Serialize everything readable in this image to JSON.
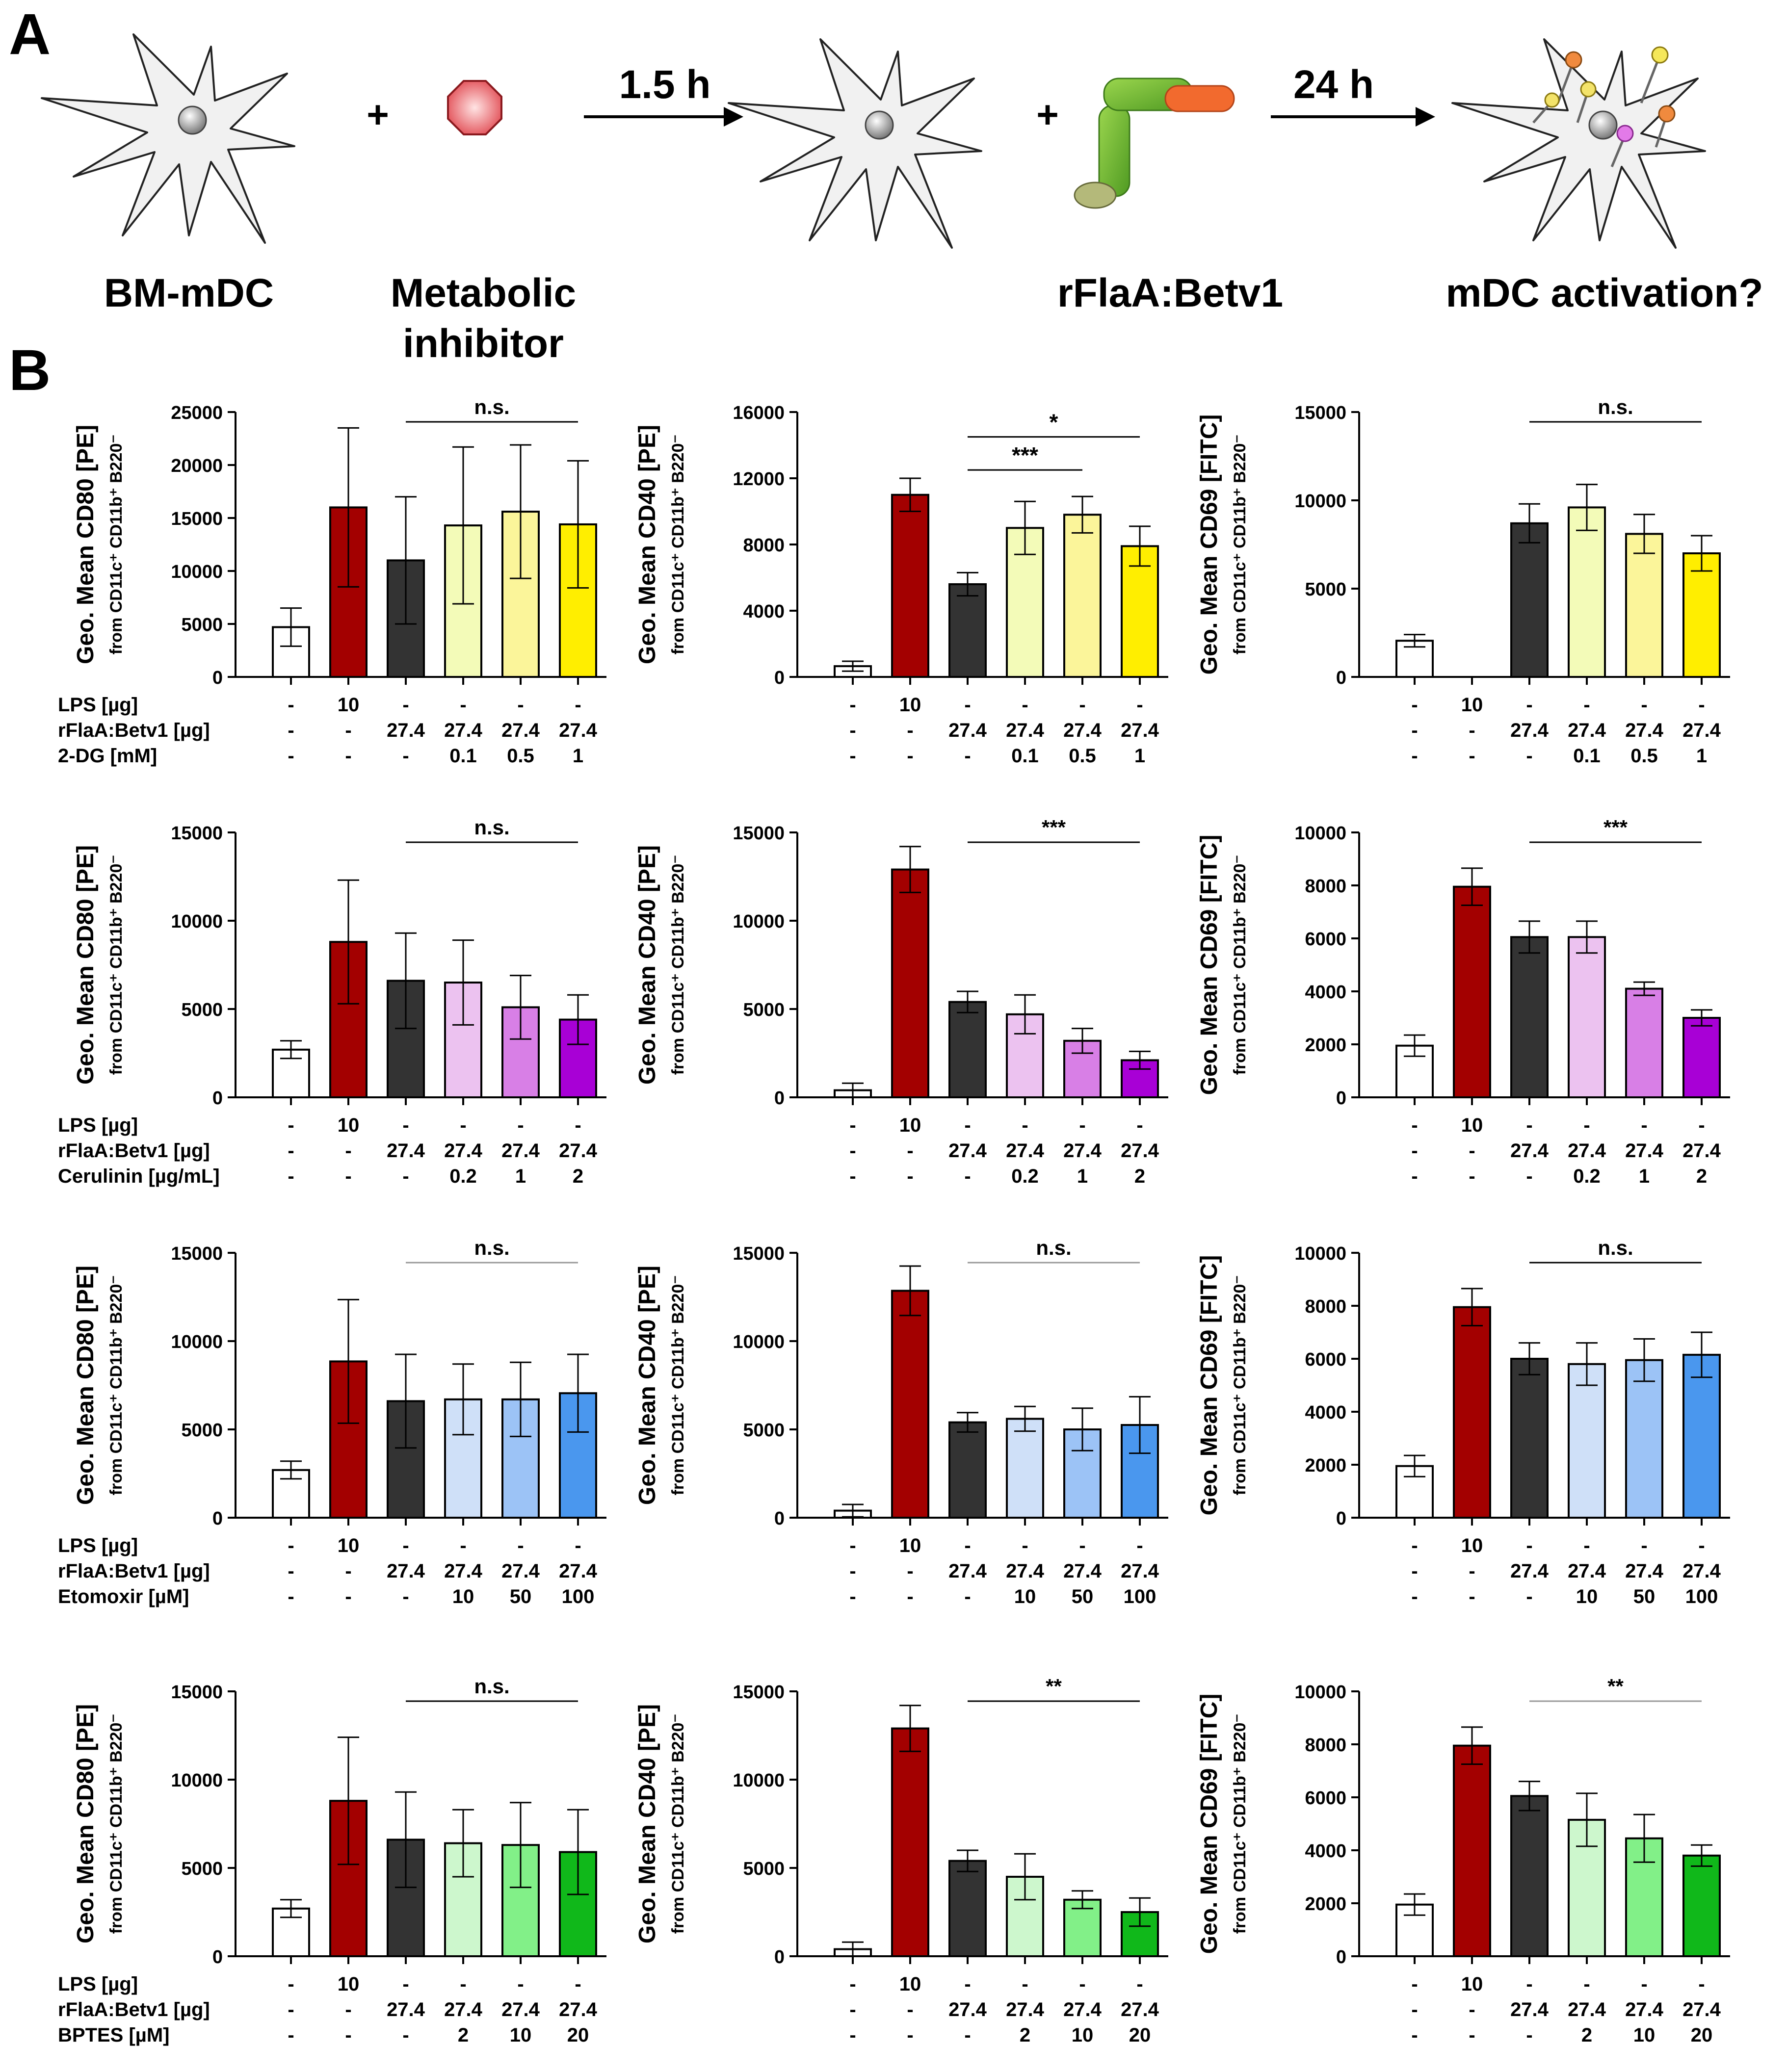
{
  "panels": {
    "a": "A",
    "b": "B"
  },
  "schematic": {
    "cell_label": "BM-mDC",
    "plus": "+",
    "inhibitor_label_1": "Metabolic",
    "inhibitor_label_2": "inhibitor",
    "step1_time": "1.5 h",
    "antigen_label": "rFlaA:Betv1",
    "step2_time": "24 h",
    "outcome_label": "mDC activation?"
  },
  "axis_titles": {
    "cd80": "Geo. Mean CD80 [PE]",
    "cd40": "Geo. Mean CD40 [PE]",
    "cd69": "Geo. Mean CD69 [FITC]",
    "subtitle": "from CD11c⁺ CD11b⁺ B220⁻"
  },
  "row_labels": {
    "lps": "LPS [µg]",
    "flaa": "rFlaA:Betv1 [µg]",
    "inhibitors": [
      "2-DG [mM]",
      "Cerulinin [µg/mL]",
      "Etomoxir [µM]",
      "BPTES [µM]"
    ]
  },
  "table": {
    "lps": [
      "-",
      "10",
      "-",
      "-",
      "-",
      "-"
    ],
    "flaa": [
      "-",
      "-",
      "27.4",
      "27.4",
      "27.4",
      "27.4"
    ],
    "inhibitor_doses": [
      [
        "-",
        "-",
        "-",
        "0.1",
        "0.5",
        "1"
      ],
      [
        "-",
        "-",
        "-",
        "0.2",
        "1",
        "2"
      ],
      [
        "-",
        "-",
        "-",
        "10",
        "50",
        "100"
      ],
      [
        "-",
        "-",
        "-",
        "2",
        "10",
        "20"
      ]
    ]
  },
  "colors": {
    "unstim": "#ffffff",
    "lps": "#a30000",
    "flaa": "#333333",
    "rows": [
      [
        "#f3fbb8",
        "#fbf59a",
        "#ffee00"
      ],
      [
        "#ecc2f0",
        "#d87fe6",
        "#a800d6"
      ],
      [
        "#cfe0f8",
        "#9cc3f6",
        "#4a97ee"
      ],
      [
        "#cdf7cd",
        "#82f088",
        "#10b81a"
      ]
    ]
  },
  "chart_data": [
    {
      "type": "bar",
      "row": 0,
      "marker": "CD80",
      "ylim": [
        0,
        25000
      ],
      "ticks": [
        0,
        5000,
        10000,
        15000,
        20000,
        25000
      ],
      "values": [
        4700,
        16000,
        11000,
        14300,
        15600,
        14400
      ],
      "errors": [
        1800,
        7500,
        6000,
        7400,
        6300,
        6000
      ],
      "significance": "n.s."
    },
    {
      "type": "bar",
      "row": 0,
      "marker": "CD40",
      "ylim": [
        0,
        16000
      ],
      "ticks": [
        0,
        4000,
        8000,
        12000,
        16000
      ],
      "values": [
        650,
        11000,
        5600,
        9000,
        9800,
        7900
      ],
      "errors": [
        300,
        1000,
        700,
        1600,
        1100,
        1200
      ],
      "significance": [
        "***",
        "*"
      ]
    },
    {
      "type": "bar",
      "row": 0,
      "marker": "CD69",
      "ylim": [
        0,
        15000
      ],
      "ticks": [
        0,
        5000,
        10000,
        15000
      ],
      "values": [
        2050,
        null,
        8700,
        9600,
        8100,
        7000
      ],
      "errors": [
        350,
        null,
        1100,
        1300,
        1100,
        1000
      ],
      "significance": "n.s."
    },
    {
      "type": "bar",
      "row": 1,
      "marker": "CD80",
      "ylim": [
        0,
        15000
      ],
      "ticks": [
        0,
        5000,
        10000,
        15000
      ],
      "values": [
        2700,
        8800,
        6600,
        6500,
        5100,
        4400
      ],
      "errors": [
        500,
        3500,
        2700,
        2400,
        1800,
        1400
      ],
      "significance": "n.s."
    },
    {
      "type": "bar",
      "row": 1,
      "marker": "CD40",
      "ylim": [
        0,
        15000
      ],
      "ticks": [
        0,
        5000,
        10000,
        15000
      ],
      "values": [
        400,
        12900,
        5400,
        4700,
        3200,
        2100
      ],
      "errors": [
        400,
        1300,
        600,
        1100,
        700,
        500
      ],
      "significance": "***"
    },
    {
      "type": "bar",
      "row": 1,
      "marker": "CD69",
      "ylim": [
        0,
        10000
      ],
      "ticks": [
        0,
        2000,
        4000,
        6000,
        8000,
        10000
      ],
      "values": [
        1950,
        7950,
        6050,
        6050,
        4100,
        3000
      ],
      "errors": [
        400,
        700,
        600,
        600,
        250,
        300
      ],
      "significance": "***"
    },
    {
      "type": "bar",
      "row": 2,
      "marker": "CD80",
      "ylim": [
        0,
        15000
      ],
      "ticks": [
        0,
        5000,
        10000,
        15000
      ],
      "values": [
        2700,
        8850,
        6600,
        6700,
        6700,
        7050
      ],
      "errors": [
        500,
        3500,
        2650,
        2000,
        2100,
        2200
      ],
      "significance": "n.s."
    },
    {
      "type": "bar",
      "row": 2,
      "marker": "CD40",
      "ylim": [
        0,
        15000
      ],
      "ticks": [
        0,
        5000,
        10000,
        15000
      ],
      "values": [
        400,
        12850,
        5400,
        5600,
        5000,
        5250
      ],
      "errors": [
        350,
        1400,
        550,
        700,
        1200,
        1600
      ],
      "significance": "n.s."
    },
    {
      "type": "bar",
      "row": 2,
      "marker": "CD69",
      "ylim": [
        0,
        10000
      ],
      "ticks": [
        0,
        2000,
        4000,
        6000,
        8000,
        10000
      ],
      "values": [
        1950,
        7950,
        6000,
        5800,
        5950,
        6150
      ],
      "errors": [
        400,
        700,
        600,
        800,
        800,
        850
      ],
      "significance": "n.s."
    },
    {
      "type": "bar",
      "row": 3,
      "marker": "CD80",
      "ylim": [
        0,
        15000
      ],
      "ticks": [
        0,
        5000,
        10000,
        15000
      ],
      "values": [
        2700,
        8800,
        6600,
        6400,
        6300,
        5900
      ],
      "errors": [
        500,
        3600,
        2700,
        1900,
        2400,
        2400
      ],
      "significance": "n.s."
    },
    {
      "type": "bar",
      "row": 3,
      "marker": "CD40",
      "ylim": [
        0,
        15000
      ],
      "ticks": [
        0,
        5000,
        10000,
        15000
      ],
      "values": [
        400,
        12900,
        5400,
        4500,
        3200,
        2500
      ],
      "errors": [
        400,
        1300,
        600,
        1300,
        500,
        800
      ],
      "significance": "**"
    },
    {
      "type": "bar",
      "row": 3,
      "marker": "CD69",
      "ylim": [
        0,
        10000
      ],
      "ticks": [
        0,
        2000,
        4000,
        6000,
        8000,
        10000
      ],
      "values": [
        1950,
        7950,
        6050,
        5150,
        4450,
        3800
      ],
      "errors": [
        400,
        700,
        550,
        1000,
        900,
        400
      ],
      "significance": "**"
    }
  ]
}
